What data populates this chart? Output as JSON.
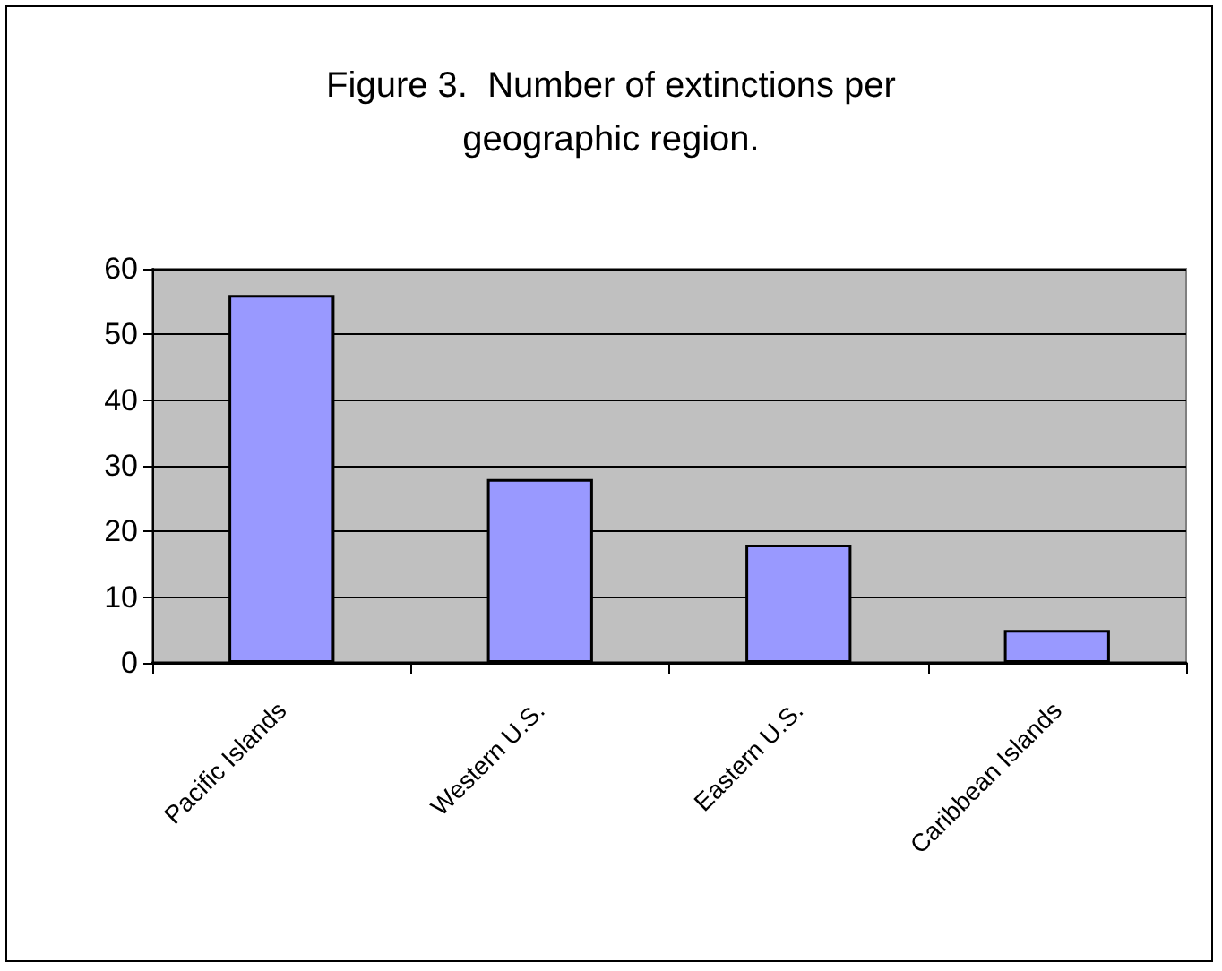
{
  "chart_data": {
    "type": "bar",
    "title": "Figure 3.  Number of extinctions per\ngeographic region.",
    "categories": [
      "Pacific Islands",
      "Western U.S.",
      "Eastern U.S.",
      "Caribbean Islands"
    ],
    "values": [
      56,
      28,
      18,
      5
    ],
    "color": "#9999ff",
    "ylim": [
      0,
      60
    ],
    "yticks": [
      0,
      10,
      20,
      30,
      40,
      50,
      60
    ],
    "grid": "y"
  }
}
